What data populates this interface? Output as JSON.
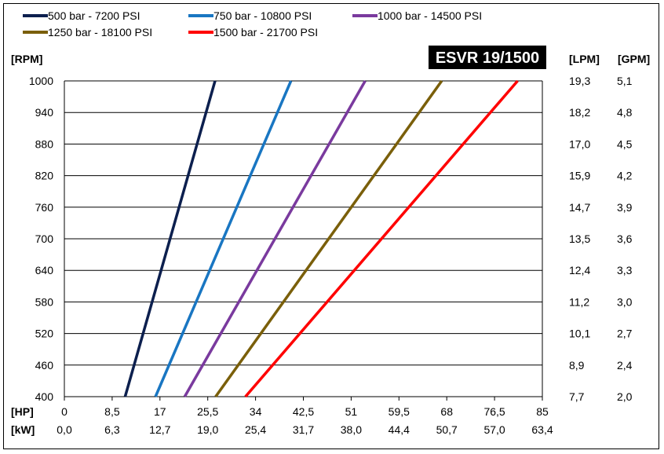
{
  "chart_data": {
    "type": "line",
    "title": "ESVR 19/1500",
    "y_header": "[RPM]",
    "lpm_header": "[LPM]",
    "gpm_header": "[GPM]",
    "hp_header": "[HP]",
    "kw_header": "[kW]",
    "ylim": [
      400,
      1000
    ],
    "xlim": [
      0,
      85
    ],
    "grid": true,
    "legend_position": "top",
    "rpm_ticks": [
      "1000",
      "940",
      "880",
      "820",
      "760",
      "700",
      "640",
      "580",
      "520",
      "460",
      "400"
    ],
    "lpm_ticks": [
      "19,3",
      "18,2",
      "17,0",
      "15,9",
      "14,7",
      "13,5",
      "12,4",
      "11,2",
      "10,1",
      "8,9",
      "7,7"
    ],
    "gpm_ticks": [
      "5,1",
      "4,8",
      "4,5",
      "4,2",
      "3,9",
      "3,6",
      "3,3",
      "3,0",
      "2,7",
      "2,4",
      "2,0"
    ],
    "hp_ticks": [
      "0",
      "8,5",
      "17",
      "25,5",
      "34",
      "42,5",
      "51",
      "59,5",
      "68",
      "76,5",
      "85"
    ],
    "kw_ticks": [
      "0,0",
      "6,3",
      "12,7",
      "19,0",
      "25,4",
      "31,7",
      "38,0",
      "44,4",
      "50,7",
      "57,0",
      "63,4"
    ],
    "series": [
      {
        "name": "500 bar - 7200 PSI",
        "color": "#0c1f4e",
        "points": [
          [
            10.8,
            400
          ],
          [
            26.8,
            1000
          ]
        ]
      },
      {
        "name": "750 bar - 10800 PSI",
        "color": "#1976c2",
        "points": [
          [
            16.2,
            400
          ],
          [
            40.3,
            1000
          ]
        ]
      },
      {
        "name": "1000 bar - 14500 PSI",
        "color": "#7a3a9e",
        "points": [
          [
            21.4,
            400
          ],
          [
            53.5,
            1000
          ]
        ]
      },
      {
        "name": "1250 bar - 18100 PSI",
        "color": "#7a5f0a",
        "points": [
          [
            26.9,
            400
          ],
          [
            67.1,
            1000
          ]
        ]
      },
      {
        "name": "1500 bar - 21700 PSI",
        "color": "#ff0000",
        "points": [
          [
            32.2,
            400
          ],
          [
            80.6,
            1000
          ]
        ]
      }
    ]
  }
}
